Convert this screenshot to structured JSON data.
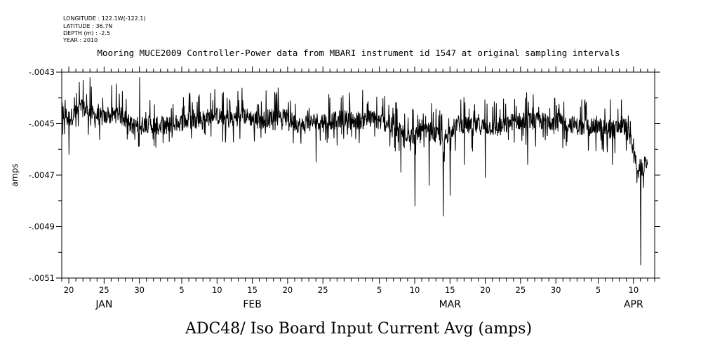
{
  "metadata": [
    "LONGITUDE : 122.1W(-122.1)",
    "LATITUDE : 36.7N",
    "DEPTH (m) : -2.5",
    "YEAR : 2010"
  ],
  "chart_data": {
    "type": "line",
    "title": "Mooring MUCE2009 Controller-Power data from MBARI instrument id 1547 at original sampling intervals",
    "xlabel": "ADC48/ Iso Board Input Current Avg (amps)",
    "ylabel": "amps",
    "xlim": [
      "2010-01-19",
      "2010-04-13"
    ],
    "ylim": [
      -0.0051,
      -0.0043
    ],
    "y_ticks": [
      {
        "value": -0.0043,
        "label": "-.0043"
      },
      {
        "value": -0.0045,
        "label": "-.0045"
      },
      {
        "value": -0.0047,
        "label": "-.0047"
      },
      {
        "value": -0.0049,
        "label": "-.0049"
      },
      {
        "value": -0.0051,
        "label": "-.0051"
      }
    ],
    "x_day_labels": [
      {
        "date": "2010-01-20",
        "label": "20"
      },
      {
        "date": "2010-01-25",
        "label": "25"
      },
      {
        "date": "2010-01-30",
        "label": "30"
      },
      {
        "date": "2010-02-05",
        "label": "5"
      },
      {
        "date": "2010-02-10",
        "label": "10"
      },
      {
        "date": "2010-02-15",
        "label": "15"
      },
      {
        "date": "2010-02-20",
        "label": "20"
      },
      {
        "date": "2010-02-25",
        "label": "25"
      },
      {
        "date": "2010-03-05",
        "label": "5"
      },
      {
        "date": "2010-03-10",
        "label": "10"
      },
      {
        "date": "2010-03-15",
        "label": "15"
      },
      {
        "date": "2010-03-20",
        "label": "20"
      },
      {
        "date": "2010-03-25",
        "label": "25"
      },
      {
        "date": "2010-03-30",
        "label": "30"
      },
      {
        "date": "2010-04-05",
        "label": "5"
      },
      {
        "date": "2010-04-10",
        "label": "10"
      }
    ],
    "x_month_labels": [
      {
        "date": "2010-01-25",
        "label": "JAN"
      },
      {
        "date": "2010-02-15",
        "label": "FEB"
      },
      {
        "date": "2010-03-15",
        "label": "MAR"
      },
      {
        "date": "2010-04-10",
        "label": "APR"
      }
    ],
    "series": [
      {
        "x": [
          "2010-01-19",
          "2010-01-20",
          "2010-01-21",
          "2010-01-22",
          "2010-01-23",
          "2010-01-25",
          "2010-01-27",
          "2010-01-29",
          "2010-01-31",
          "2010-02-02",
          "2010-02-04",
          "2010-02-06",
          "2010-02-08",
          "2010-02-10",
          "2010-02-12",
          "2010-02-14",
          "2010-02-16",
          "2010-02-18",
          "2010-02-20",
          "2010-02-22",
          "2010-02-24",
          "2010-02-26",
          "2010-02-28",
          "2010-03-02",
          "2010-03-04",
          "2010-03-06",
          "2010-03-08",
          "2010-03-10",
          "2010-03-12",
          "2010-03-14",
          "2010-03-16",
          "2010-03-18",
          "2010-03-20",
          "2010-03-22",
          "2010-03-24",
          "2010-03-26",
          "2010-03-28",
          "2010-03-30",
          "2010-04-01",
          "2010-04-03",
          "2010-04-05",
          "2010-04-07",
          "2010-04-09",
          "2010-04-10",
          "2010-04-11",
          "2010-04-12"
        ],
        "values": [
          -0.00445,
          -0.00448,
          -0.00446,
          -0.00444,
          -0.00446,
          -0.00448,
          -0.00446,
          -0.00451,
          -0.0045,
          -0.00451,
          -0.0045,
          -0.00449,
          -0.00448,
          -0.00447,
          -0.00448,
          -0.00447,
          -0.00449,
          -0.00447,
          -0.00448,
          -0.00451,
          -0.00449,
          -0.00449,
          -0.00448,
          -0.00449,
          -0.00448,
          -0.0045,
          -0.00453,
          -0.00455,
          -0.00453,
          -0.00456,
          -0.0045,
          -0.00451,
          -0.00451,
          -0.00452,
          -0.00449,
          -0.00449,
          -0.00449,
          -0.00449,
          -0.0045,
          -0.00452,
          -0.00451,
          -0.00452,
          -0.00451,
          -0.00462,
          -0.0047,
          -0.00463
        ],
        "spikes": [
          {
            "x": "2010-01-20",
            "value": -0.00462
          },
          {
            "x": "2010-01-22",
            "value": -0.00433
          },
          {
            "x": "2010-01-23",
            "value": -0.00432
          },
          {
            "x": "2010-01-30",
            "value": -0.00432
          },
          {
            "x": "2010-02-24",
            "value": -0.00465
          },
          {
            "x": "2010-03-08",
            "value": -0.00469
          },
          {
            "x": "2010-03-10",
            "value": -0.00482
          },
          {
            "x": "2010-03-12",
            "value": -0.00474
          },
          {
            "x": "2010-03-14",
            "value": -0.00486
          },
          {
            "x": "2010-03-15",
            "value": -0.00478
          },
          {
            "x": "2010-03-17",
            "value": -0.00466
          },
          {
            "x": "2010-03-20",
            "value": -0.00471
          },
          {
            "x": "2010-03-26",
            "value": -0.00466
          },
          {
            "x": "2010-04-07",
            "value": -0.00466
          },
          {
            "x": "2010-04-11",
            "value": -0.00505
          }
        ]
      }
    ],
    "grid": false,
    "legend": "none"
  }
}
